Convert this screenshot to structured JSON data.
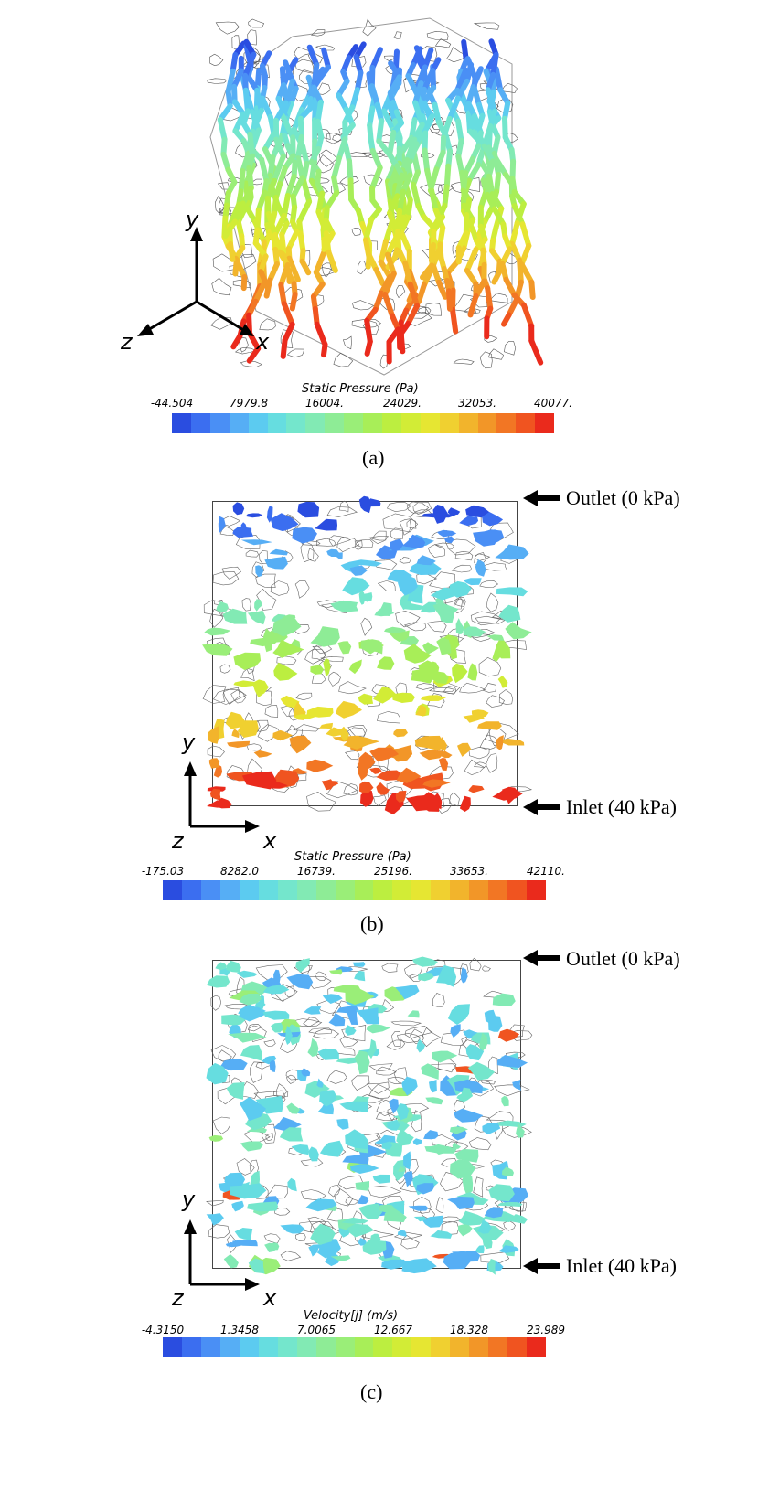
{
  "panel_a": {
    "sublabel": "(a)",
    "colorbar": {
      "title": "Static Pressure (Pa)",
      "ticks": [
        "-44.504",
        "7979.8",
        "16004.",
        "24029.",
        "32053.",
        "40077."
      ]
    },
    "axes": {
      "vertical": "y",
      "left": "z",
      "right": "x"
    }
  },
  "panel_b": {
    "sublabel": "(b)",
    "outlet_label": "Outlet (0 kPa)",
    "inlet_label": "Inlet (40 kPa)",
    "colorbar": {
      "title": "Static Pressure (Pa)",
      "ticks": [
        "-175.03",
        "8282.0",
        "16739.",
        "25196.",
        "33653.",
        "42110."
      ]
    },
    "axes": {
      "vertical": "y",
      "depth": "z",
      "horizontal": "x"
    }
  },
  "panel_c": {
    "sublabel": "(c)",
    "outlet_label": "Outlet (0 kPa)",
    "inlet_label": "Inlet (40 kPa)",
    "colorbar": {
      "title": "Velocity[j] (m/s)",
      "ticks": [
        "-4.3150",
        "1.3458",
        "7.0065",
        "12.667",
        "18.328",
        "23.989"
      ]
    },
    "axes": {
      "vertical": "y",
      "depth": "z",
      "horizontal": "x"
    }
  },
  "colormap": [
    "#2a4de0",
    "#3b6ef0",
    "#4a8ff5",
    "#56aef5",
    "#5ccbf0",
    "#66dde0",
    "#74e6cc",
    "#82eab4",
    "#8eec96",
    "#9aee78",
    "#a8ee58",
    "#bcee40",
    "#d2ec36",
    "#e6e632",
    "#f0d030",
    "#f2b42c",
    "#f29628",
    "#f27624",
    "#f05420",
    "#ea2a1c"
  ]
}
